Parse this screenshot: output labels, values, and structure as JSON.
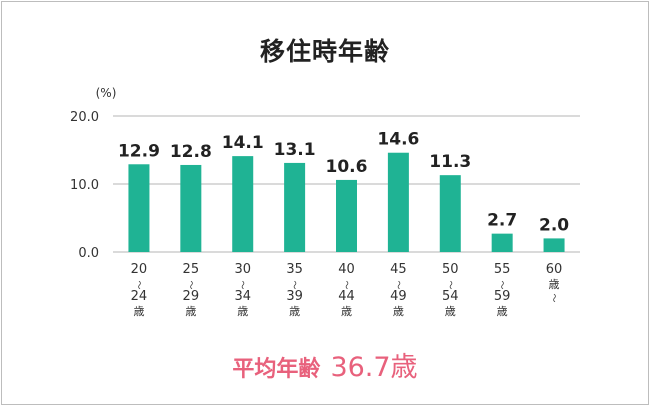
{
  "chart_data": {
    "type": "bar",
    "title": "移住時年齢",
    "unit_label": "(%)",
    "categories": [
      [
        "20",
        "〜",
        "24",
        "歳"
      ],
      [
        "25",
        "〜",
        "29",
        "歳"
      ],
      [
        "30",
        "〜",
        "34",
        "歳"
      ],
      [
        "35",
        "〜",
        "39",
        "歳"
      ],
      [
        "40",
        "〜",
        "44",
        "歳"
      ],
      [
        "45",
        "〜",
        "49",
        "歳"
      ],
      [
        "50",
        "〜",
        "54",
        "歳"
      ],
      [
        "55",
        "〜",
        "59",
        "歳"
      ],
      [
        "60",
        "歳",
        "〜"
      ]
    ],
    "values": [
      12.9,
      12.8,
      14.1,
      13.1,
      10.6,
      14.6,
      11.3,
      2.7,
      2.0
    ],
    "ylim": [
      0,
      20
    ],
    "yticks": [
      "0.0",
      "10.0",
      "20.0"
    ],
    "grid": true,
    "colors": {
      "bar": "#1fb394",
      "grid": "#b5b5b5",
      "accent": "#e8617c"
    }
  },
  "summary": {
    "label": "平均年齢",
    "value": "36.7歳"
  }
}
